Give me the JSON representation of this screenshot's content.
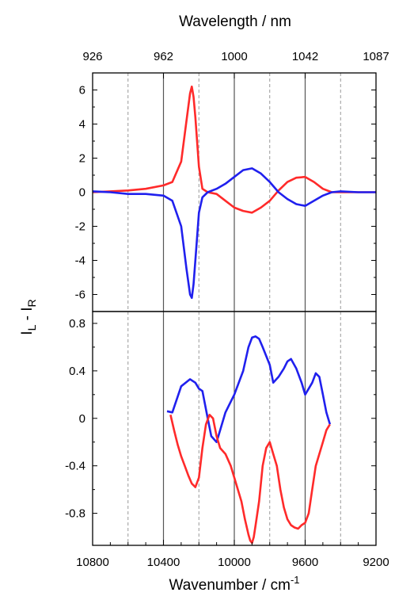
{
  "chart_data": [
    {
      "panel": "top",
      "type": "line",
      "top_axis_label": "Wavelength / nm",
      "top_ticks": [
        "926",
        "962",
        "1000",
        "1042",
        "1087"
      ],
      "xlim": [
        10800,
        9200
      ],
      "ylim": [
        -7,
        7
      ],
      "yticks": [
        6,
        4,
        2,
        0,
        -2,
        -4,
        -6
      ],
      "ytick_labels": [
        "6",
        "4",
        "2",
        "0",
        "-2",
        "-4",
        "-6"
      ],
      "solid_vlines": [
        10400,
        10000,
        9600
      ],
      "dashed_vlines": [
        10600,
        10200,
        9800,
        9400
      ],
      "series": [
        {
          "color": "#ff2a2a",
          "x": [
            10800,
            10700,
            10600,
            10500,
            10400,
            10350,
            10300,
            10270,
            10250,
            10240,
            10230,
            10220,
            10200,
            10180,
            10150,
            10100,
            10050,
            10000,
            9950,
            9900,
            9850,
            9800,
            9750,
            9700,
            9650,
            9600,
            9550,
            9500,
            9450,
            9400,
            9300,
            9200
          ],
          "y": [
            0.0,
            0.05,
            0.1,
            0.2,
            0.4,
            0.6,
            1.8,
            4.2,
            5.8,
            6.2,
            5.6,
            4.4,
            1.5,
            0.2,
            0.0,
            -0.1,
            -0.5,
            -0.9,
            -1.1,
            -1.2,
            -0.9,
            -0.5,
            0.1,
            0.6,
            0.85,
            0.9,
            0.6,
            0.2,
            0.0,
            0.0,
            0.0,
            0.0
          ]
        },
        {
          "color": "#2020ee",
          "x": [
            10800,
            10700,
            10600,
            10500,
            10400,
            10350,
            10300,
            10270,
            10250,
            10240,
            10230,
            10220,
            10200,
            10180,
            10150,
            10100,
            10050,
            10000,
            9950,
            9900,
            9850,
            9800,
            9750,
            9700,
            9650,
            9600,
            9550,
            9500,
            9450,
            9400,
            9300,
            9200
          ],
          "y": [
            0.05,
            0.0,
            -0.1,
            -0.1,
            -0.2,
            -0.5,
            -2.0,
            -4.5,
            -6.0,
            -6.2,
            -5.4,
            -4.0,
            -1.2,
            -0.3,
            0.0,
            0.2,
            0.5,
            0.9,
            1.3,
            1.4,
            1.1,
            0.6,
            0.0,
            -0.4,
            -0.7,
            -0.8,
            -0.5,
            -0.2,
            0.0,
            0.05,
            0.0,
            0.0
          ]
        }
      ]
    },
    {
      "panel": "bottom",
      "type": "line",
      "xlabel": "Wavenumber / cm",
      "xlabel_superscript": "-1",
      "xlim": [
        10800,
        9200
      ],
      "xticks": [
        10800,
        10400,
        10000,
        9600,
        9200
      ],
      "xtick_labels": [
        "10800",
        "10400",
        "10000",
        "9600",
        "9200"
      ],
      "ylim": [
        -1.07,
        0.9
      ],
      "yticks": [
        0.8,
        0.4,
        0,
        -0.4,
        -0.8
      ],
      "ytick_labels": [
        "0.8",
        "0.4",
        "0",
        "-0.4",
        "-0.8"
      ],
      "solid_vlines": [
        10400,
        10000,
        9600
      ],
      "dashed_vlines": [
        10600,
        10200,
        9800,
        9400
      ],
      "series": [
        {
          "color": "#2020ee",
          "x": [
            10380,
            10350,
            10300,
            10250,
            10220,
            10200,
            10180,
            10150,
            10130,
            10100,
            10080,
            10050,
            10000,
            9950,
            9920,
            9900,
            9880,
            9860,
            9840,
            9800,
            9780,
            9750,
            9720,
            9700,
            9680,
            9650,
            9620,
            9600,
            9580,
            9560,
            9540,
            9520,
            9500,
            9480,
            9460
          ],
          "y": [
            0.06,
            0.05,
            0.27,
            0.33,
            0.3,
            0.25,
            0.23,
            0.0,
            -0.15,
            -0.2,
            -0.1,
            0.05,
            0.2,
            0.4,
            0.6,
            0.68,
            0.69,
            0.67,
            0.6,
            0.45,
            0.3,
            0.35,
            0.42,
            0.48,
            0.5,
            0.42,
            0.3,
            0.2,
            0.25,
            0.3,
            0.38,
            0.35,
            0.2,
            0.05,
            -0.05
          ]
        },
        {
          "color": "#ff2a2a",
          "x": [
            10360,
            10340,
            10320,
            10300,
            10280,
            10260,
            10240,
            10220,
            10200,
            10180,
            10160,
            10140,
            10120,
            10100,
            10080,
            10050,
            10020,
            10000,
            9980,
            9960,
            9940,
            9920,
            9910,
            9900,
            9890,
            9880,
            9860,
            9840,
            9820,
            9800,
            9780,
            9760,
            9740,
            9720,
            9700,
            9680,
            9660,
            9640,
            9620,
            9600,
            9580,
            9560,
            9540,
            9520,
            9500,
            9480,
            9460
          ],
          "y": [
            0.03,
            -0.1,
            -0.22,
            -0.32,
            -0.4,
            -0.48,
            -0.55,
            -0.58,
            -0.5,
            -0.25,
            -0.05,
            0.03,
            0.0,
            -0.15,
            -0.25,
            -0.3,
            -0.4,
            -0.5,
            -0.6,
            -0.7,
            -0.85,
            -0.98,
            -1.03,
            -1.05,
            -1.0,
            -0.9,
            -0.7,
            -0.4,
            -0.25,
            -0.2,
            -0.3,
            -0.4,
            -0.6,
            -0.75,
            -0.85,
            -0.9,
            -0.92,
            -0.93,
            -0.9,
            -0.88,
            -0.8,
            -0.6,
            -0.4,
            -0.3,
            -0.2,
            -0.1,
            -0.05
          ]
        }
      ]
    }
  ],
  "y_axis_label": {
    "main": "I",
    "sub1": "L",
    "sep": " - I",
    "sub2": "R"
  }
}
